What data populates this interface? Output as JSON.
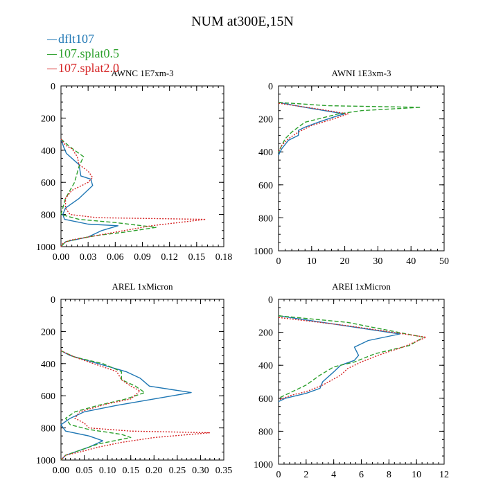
{
  "title": "NUM at300E,15N",
  "legend": [
    {
      "name": "dflt107",
      "color": "#1f77b4"
    },
    {
      "name": "107.splat0.5",
      "color": "#2ca02c"
    },
    {
      "name": "107.splat2.0",
      "color": "#d62728"
    }
  ],
  "chart_data": [
    {
      "type": "line",
      "title": "AWNC  1E7xm-3",
      "xlim": [
        0,
        0.18
      ],
      "xticks": [
        "0.00",
        "0.03",
        "0.06",
        "0.09",
        "0.12",
        "0.15",
        "0.18"
      ],
      "ylim": [
        0,
        1000
      ],
      "yticks": [
        "0",
        "200",
        "400",
        "600",
        "800",
        "1000"
      ],
      "series": [
        {
          "name": "dflt107",
          "style": "solid",
          "color": "#1f77b4",
          "points": [
            [
              0,
              330
            ],
            [
              0.003,
              380
            ],
            [
              0.006,
              420
            ],
            [
              0.02,
              490
            ],
            [
              0.022,
              560
            ],
            [
              0.033,
              580
            ],
            [
              0.035,
              620
            ],
            [
              0.02,
              700
            ],
            [
              0.005,
              760
            ],
            [
              0.002,
              800
            ],
            [
              0.004,
              830
            ],
            [
              0.03,
              860
            ],
            [
              0.063,
              870
            ],
            [
              0.045,
              900
            ],
            [
              0.03,
              940
            ],
            [
              0.005,
              970
            ],
            [
              0,
              1000
            ]
          ]
        },
        {
          "name": "107.splat0.5",
          "style": "dashed",
          "color": "#2ca02c",
          "points": [
            [
              0,
              330
            ],
            [
              0.008,
              370
            ],
            [
              0.015,
              400
            ],
            [
              0.025,
              440
            ],
            [
              0.02,
              500
            ],
            [
              0.015,
              600
            ],
            [
              0.005,
              700
            ],
            [
              0.0,
              800
            ],
            [
              0.02,
              830
            ],
            [
              0.06,
              850
            ],
            [
              0.105,
              880
            ],
            [
              0.07,
              910
            ],
            [
              0.04,
              930
            ],
            [
              0.02,
              950
            ],
            [
              0.005,
              970
            ],
            [
              0,
              1000
            ]
          ]
        },
        {
          "name": "107.splat2.0",
          "style": "dotted",
          "color": "#d62728",
          "points": [
            [
              0,
              330
            ],
            [
              0.005,
              370
            ],
            [
              0.012,
              390
            ],
            [
              0.018,
              440
            ],
            [
              0.02,
              490
            ],
            [
              0.03,
              530
            ],
            [
              0.035,
              570
            ],
            [
              0.03,
              600
            ],
            [
              0.012,
              650
            ],
            [
              0.005,
              700
            ],
            [
              0.005,
              760
            ],
            [
              0.01,
              800
            ],
            [
              0.04,
              820
            ],
            [
              0.16,
              830
            ],
            [
              0.1,
              870
            ],
            [
              0.06,
              910
            ],
            [
              0.03,
              940
            ],
            [
              0.01,
              960
            ],
            [
              0.002,
              980
            ],
            [
              0,
              1000
            ]
          ]
        }
      ]
    },
    {
      "type": "line",
      "title": "AWNI  1E3xm-3",
      "xlim": [
        0,
        50
      ],
      "xticks": [
        "0",
        "10",
        "20",
        "30",
        "40",
        "50"
      ],
      "ylim": [
        0,
        1000
      ],
      "yticks": [
        "0",
        "200",
        "400",
        "600",
        "800",
        "1000"
      ],
      "series": [
        {
          "name": "dflt107",
          "style": "solid",
          "color": "#1f77b4",
          "points": [
            [
              0,
              100
            ],
            [
              8,
              130
            ],
            [
              20,
              170
            ],
            [
              18,
              180
            ],
            [
              12,
              220
            ],
            [
              8,
              250
            ],
            [
              6,
              270
            ],
            [
              6,
              300
            ],
            [
              3,
              330
            ],
            [
              1,
              380
            ],
            [
              0,
              420
            ]
          ]
        },
        {
          "name": "107.splat0.5",
          "style": "dashed",
          "color": "#2ca02c",
          "points": [
            [
              0,
              100
            ],
            [
              15,
              120
            ],
            [
              43,
              130
            ],
            [
              25,
              150
            ],
            [
              18,
              170
            ],
            [
              8,
              220
            ],
            [
              4,
              280
            ],
            [
              2,
              320
            ],
            [
              1,
              360
            ],
            [
              0,
              400
            ]
          ]
        },
        {
          "name": "107.splat2.0",
          "style": "dotted",
          "color": "#d62728",
          "points": [
            [
              0,
              105
            ],
            [
              12,
              140
            ],
            [
              21,
              170
            ],
            [
              15,
              210
            ],
            [
              10,
              240
            ],
            [
              6,
              280
            ],
            [
              3,
              320
            ],
            [
              1,
              360
            ],
            [
              0,
              400
            ]
          ]
        }
      ]
    },
    {
      "type": "line",
      "title": "AREL  1xMicron",
      "xlim": [
        0,
        0.35
      ],
      "xticks": [
        "0.00",
        "0.05",
        "0.10",
        "0.15",
        "0.20",
        "0.25",
        "0.30",
        "0.35"
      ],
      "ylim": [
        0,
        1000
      ],
      "yticks": [
        "0",
        "200",
        "400",
        "600",
        "800",
        "1000"
      ],
      "series": [
        {
          "name": "dflt107",
          "style": "solid",
          "color": "#1f77b4",
          "points": [
            [
              0,
              320
            ],
            [
              0.02,
              350
            ],
            [
              0.08,
              400
            ],
            [
              0.14,
              450
            ],
            [
              0.17,
              490
            ],
            [
              0.19,
              540
            ],
            [
              0.28,
              580
            ],
            [
              0.2,
              620
            ],
            [
              0.12,
              660
            ],
            [
              0.05,
              700
            ],
            [
              0.02,
              740
            ],
            [
              0.0,
              780
            ],
            [
              0.01,
              820
            ],
            [
              0.06,
              850
            ],
            [
              0.09,
              880
            ],
            [
              0.06,
              920
            ],
            [
              0.03,
              950
            ],
            [
              0.01,
              970
            ],
            [
              0,
              1000
            ]
          ]
        },
        {
          "name": "107.splat0.5",
          "style": "dashed",
          "color": "#2ca02c",
          "points": [
            [
              0,
              320
            ],
            [
              0.03,
              360
            ],
            [
              0.09,
              400
            ],
            [
              0.13,
              450
            ],
            [
              0.13,
              500
            ],
            [
              0.16,
              540
            ],
            [
              0.18,
              580
            ],
            [
              0.14,
              620
            ],
            [
              0.08,
              660
            ],
            [
              0.03,
              700
            ],
            [
              0.01,
              740
            ],
            [
              0.02,
              780
            ],
            [
              0.06,
              810
            ],
            [
              0.13,
              840
            ],
            [
              0.15,
              860
            ],
            [
              0.08,
              900
            ],
            [
              0.04,
              940
            ],
            [
              0.01,
              970
            ],
            [
              0,
              1000
            ]
          ]
        },
        {
          "name": "107.splat2.0",
          "style": "dotted",
          "color": "#d62728",
          "points": [
            [
              0,
              320
            ],
            [
              0.03,
              360
            ],
            [
              0.08,
              410
            ],
            [
              0.12,
              450
            ],
            [
              0.13,
              500
            ],
            [
              0.15,
              540
            ],
            [
              0.17,
              570
            ],
            [
              0.15,
              620
            ],
            [
              0.1,
              650
            ],
            [
              0.04,
              700
            ],
            [
              0.03,
              740
            ],
            [
              0.05,
              770
            ],
            [
              0.06,
              800
            ],
            [
              0.15,
              820
            ],
            [
              0.32,
              830
            ],
            [
              0.2,
              860
            ],
            [
              0.13,
              890
            ],
            [
              0.08,
              920
            ],
            [
              0.04,
              950
            ],
            [
              0.01,
              970
            ],
            [
              0,
              1000
            ]
          ]
        }
      ]
    },
    {
      "type": "line",
      "title": "AREI  1xMicron",
      "xlim": [
        0,
        12
      ],
      "xticks": [
        "0",
        "2",
        "4",
        "6",
        "8",
        "10",
        "12"
      ],
      "ylim": [
        0,
        1000
      ],
      "yticks": [
        "0",
        "200",
        "400",
        "600",
        "800",
        "1000"
      ],
      "series": [
        {
          "name": "dflt107",
          "style": "solid",
          "color": "#1f77b4",
          "points": [
            [
              0,
              100
            ],
            [
              4,
              150
            ],
            [
              8.8,
              210
            ],
            [
              6.5,
              250
            ],
            [
              5.5,
              290
            ],
            [
              5.8,
              340
            ],
            [
              5.5,
              370
            ],
            [
              4.5,
              400
            ],
            [
              4,
              440
            ],
            [
              3.2,
              500
            ],
            [
              3,
              540
            ],
            [
              2,
              570
            ],
            [
              0.5,
              600
            ],
            [
              0,
              620
            ]
          ]
        },
        {
          "name": "107.splat0.5",
          "style": "dashed",
          "color": "#2ca02c",
          "points": [
            [
              0,
              100
            ],
            [
              5,
              140
            ],
            [
              10.5,
              230
            ],
            [
              9.5,
              280
            ],
            [
              7,
              330
            ],
            [
              5.5,
              380
            ],
            [
              4,
              410
            ],
            [
              3,
              460
            ],
            [
              2,
              520
            ],
            [
              1,
              560
            ],
            [
              0,
              600
            ]
          ]
        },
        {
          "name": "107.splat2.0",
          "style": "dotted",
          "color": "#d62728",
          "points": [
            [
              0,
              110
            ],
            [
              5,
              160
            ],
            [
              10.7,
              230
            ],
            [
              9,
              290
            ],
            [
              7.2,
              340
            ],
            [
              6,
              380
            ],
            [
              5,
              420
            ],
            [
              4.5,
              460
            ],
            [
              3.2,
              520
            ],
            [
              2,
              560
            ],
            [
              1,
              580
            ],
            [
              0,
              610
            ]
          ]
        }
      ]
    }
  ]
}
